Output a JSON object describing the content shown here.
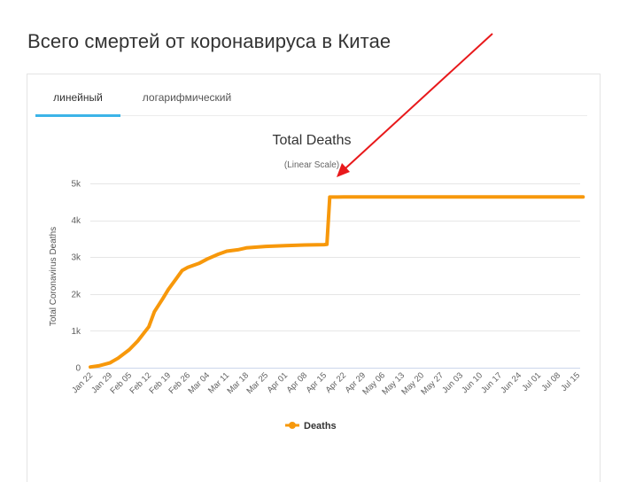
{
  "page": {
    "title": "Всего смертей от коронавируса в Китае"
  },
  "tabs": [
    {
      "label": "линейный",
      "active": true
    },
    {
      "label": "логарифмический",
      "active": false
    }
  ],
  "colors": {
    "series": "#f7980b",
    "tab_indicator": "#3cb4e8",
    "annotation_arrow": "#e8191b"
  },
  "chart_data": {
    "type": "line",
    "title": "Total Deaths",
    "subtitle": "(Linear Scale)",
    "ylabel": "Total Coronavirus Deaths",
    "xlabel": "",
    "ylim": [
      0,
      5000
    ],
    "y_ticks": [
      "0",
      "1k",
      "2k",
      "3k",
      "4k",
      "5k"
    ],
    "y_tick_values": [
      0,
      1000,
      2000,
      3000,
      4000,
      5000
    ],
    "grid": true,
    "legend_position": "bottom-center",
    "x_tick_labels": [
      "Jan 22",
      "Jan 29",
      "Feb 05",
      "Feb 12",
      "Feb 19",
      "Feb 26",
      "Mar 04",
      "Mar 11",
      "Mar 18",
      "Mar 25",
      "Apr 01",
      "Apr 08",
      "Apr 15",
      "Apr 22",
      "Apr 29",
      "May 06",
      "May 13",
      "May 20",
      "May 27",
      "Jun 03",
      "Jun 10",
      "Jun 17",
      "Jun 24",
      "Jul 01",
      "Jul 08",
      "Jul 15"
    ],
    "series": [
      {
        "name": "Deaths",
        "x": [
          "Jan 22",
          "Jan 25",
          "Jan 29",
          "Feb 01",
          "Feb 05",
          "Feb 08",
          "Feb 12",
          "Feb 14",
          "Feb 17",
          "Feb 19",
          "Feb 22",
          "Feb 24",
          "Feb 26",
          "Mar 01",
          "Mar 04",
          "Mar 08",
          "Mar 11",
          "Mar 15",
          "Mar 18",
          "Mar 25",
          "Apr 01",
          "Apr 08",
          "Apr 15",
          "Apr 16",
          "Apr 17",
          "Apr 22",
          "May 06",
          "May 20",
          "Jun 03",
          "Jun 17",
          "Jul 01",
          "Jul 15",
          "Jul 17"
        ],
        "values": [
          20,
          50,
          130,
          260,
          490,
          720,
          1110,
          1520,
          1870,
          2120,
          2430,
          2640,
          2720,
          2830,
          2950,
          3080,
          3160,
          3200,
          3250,
          3290,
          3310,
          3330,
          3340,
          3345,
          4630,
          4632,
          4633,
          4634,
          4634,
          4634,
          4634,
          4634,
          4634
        ]
      }
    ]
  }
}
